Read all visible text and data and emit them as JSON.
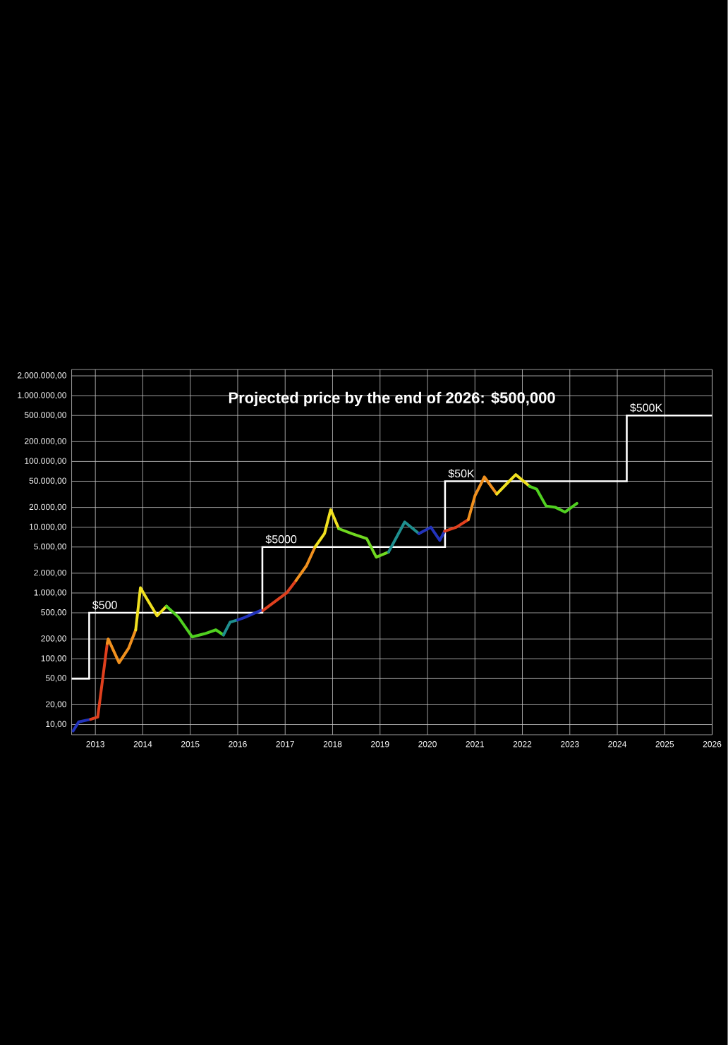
{
  "chart_data": {
    "type": "line",
    "title": "Projected price by the end of 2026: $500,000",
    "log": "y",
    "grid": true,
    "xlim": [
      2012.5,
      2026
    ],
    "xticks": [
      2013,
      2014,
      2015,
      2016,
      2017,
      2018,
      2019,
      2020,
      2021,
      2022,
      2023,
      2024,
      2025,
      2026
    ],
    "ylim": [
      7,
      2500000
    ],
    "yticks": [
      {
        "value": 10,
        "label": "10,00"
      },
      {
        "value": 20,
        "label": "20,00"
      },
      {
        "value": 50,
        "label": "50,00"
      },
      {
        "value": 100,
        "label": "100,00"
      },
      {
        "value": 200,
        "label": "200,00"
      },
      {
        "value": 500,
        "label": "500,00"
      },
      {
        "value": 1000,
        "label": "1.000,00"
      },
      {
        "value": 2000,
        "label": "2.000,00"
      },
      {
        "value": 5000,
        "label": "5.000,00"
      },
      {
        "value": 10000,
        "label": "10.000,00"
      },
      {
        "value": 20000,
        "label": "20.000,00"
      },
      {
        "value": 50000,
        "label": "50.000,00"
      },
      {
        "value": 100000,
        "label": "100.000,00"
      },
      {
        "value": 200000,
        "label": "200.000,00"
      },
      {
        "value": 500000,
        "label": "500.000,00"
      },
      {
        "value": 1000000,
        "label": "1.000.000,00"
      },
      {
        "value": 2000000,
        "label": "2.000.000,00"
      }
    ],
    "series": [
      {
        "type": "step",
        "color": "#ffffff",
        "x": [
          2012.5,
          2012.87,
          2016.52,
          2020.37,
          2024.2,
          2026
        ],
        "values": [
          50,
          500,
          5000,
          50000,
          500000,
          500000
        ]
      },
      {
        "color": "#2233bb",
        "x": [
          2012.53,
          2012.65,
          2012.9
        ],
        "values": [
          8,
          11,
          12
        ]
      },
      {
        "type": "line",
        "color": "#e0401e",
        "x": [
          2012.9,
          2013.05,
          2013.25
        ],
        "values": [
          12,
          13,
          170
        ]
      },
      {
        "type": "line",
        "color": "#f0901e",
        "x": [
          2013.25,
          2013.27,
          2013.5,
          2013.7,
          2013.85
        ],
        "values": [
          170,
          200,
          87,
          144,
          275
        ]
      },
      {
        "type": "line",
        "color": "#f0e020",
        "x": [
          2013.85,
          2013.95,
          2014.05,
          2014.3,
          2014.5
        ],
        "values": [
          275,
          1200,
          900,
          450,
          630
        ]
      },
      {
        "type": "line",
        "color": "#50d020",
        "x": [
          2014.5,
          2014.75,
          2015.04,
          2015.3,
          2015.54,
          2015.7
        ],
        "values": [
          630,
          430,
          215,
          240,
          275,
          230
        ]
      },
      {
        "type": "line",
        "color": "#1f8f8f",
        "x": [
          2015.7,
          2015.84,
          2016.0
        ],
        "values": [
          230,
          360,
          390
        ]
      },
      {
        "type": "line",
        "color": "#2233bb",
        "x": [
          2016.0,
          2016.13,
          2016.48
        ],
        "values": [
          390,
          420,
          540
        ]
      },
      {
        "type": "line",
        "color": "#e0401e",
        "x": [
          2016.53,
          2017.03,
          2017.23
        ],
        "values": [
          540,
          1000,
          1550
        ]
      },
      {
        "type": "line",
        "color": "#f0901e",
        "x": [
          2017.23,
          2017.45,
          2017.63
        ],
        "values": [
          1550,
          2600,
          5000
        ]
      },
      {
        "type": "line",
        "color": "#f0e020",
        "x": [
          2017.63,
          2017.83,
          2017.96,
          2018.13
        ],
        "values": [
          5000,
          8000,
          18500,
          9500
        ]
      },
      {
        "type": "line",
        "color": "#70d820",
        "x": [
          2018.13,
          2018.4,
          2018.72,
          2018.92,
          2019.18
        ],
        "values": [
          9500,
          8000,
          6700,
          3500,
          4200
        ]
      },
      {
        "type": "line",
        "color": "#1f8f8f",
        "x": [
          2019.18,
          2019.52,
          2019.82
        ],
        "values": [
          4200,
          12000,
          8000
        ]
      },
      {
        "type": "line",
        "color": "#2233bb",
        "x": [
          2019.82,
          2020.07,
          2020.26,
          2020.36
        ],
        "values": [
          8000,
          10000,
          6300,
          8700
        ]
      },
      {
        "type": "line",
        "color": "#e0401e",
        "x": [
          2020.36,
          2020.61,
          2020.86
        ],
        "values": [
          8700,
          10000,
          13000
        ]
      },
      {
        "type": "line",
        "color": "#f0901e",
        "x": [
          2020.86,
          2021.0,
          2021.2,
          2021.46
        ],
        "values": [
          13000,
          30000,
          58000,
          32000
        ]
      },
      {
        "type": "line",
        "color": "#f0e020",
        "x": [
          2021.46,
          2021.66,
          2021.86,
          2022.15
        ],
        "values": [
          32000,
          45000,
          63000,
          42000
        ]
      },
      {
        "type": "line",
        "color": "#50d020",
        "x": [
          2022.15,
          2022.3,
          2022.5,
          2022.7,
          2022.9,
          2023.15
        ],
        "values": [
          42000,
          38000,
          21000,
          20000,
          17000,
          23000
        ]
      }
    ],
    "annotations": [
      {
        "text": "$500",
        "x": 2012.9,
        "y": 500
      },
      {
        "text": "$5000",
        "x": 2016.55,
        "y": 5000
      },
      {
        "text": "$50K",
        "x": 2020.4,
        "y": 50000
      },
      {
        "text": "$500K",
        "x": 2024.23,
        "y": 500000
      }
    ]
  }
}
